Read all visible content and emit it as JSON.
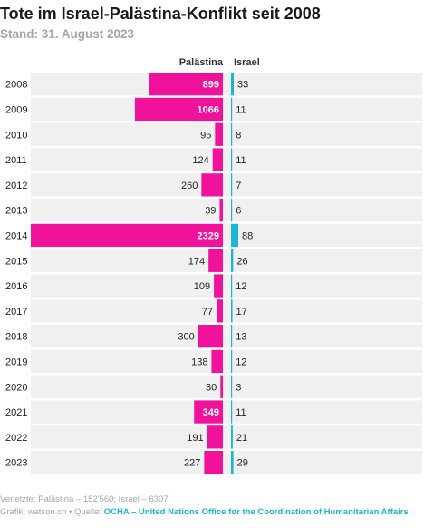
{
  "header": {
    "title": "Tote im Israel-Palästina-Konflikt seit 2008",
    "subtitle": "Stand: 31. August 2023"
  },
  "footer": {
    "injured": "Verletzte: Palästina – 152'560; Israel – 6307",
    "credit_prefix": "Grafik: watson.ch • Quelle: ",
    "source_link": "OCHA – United Nations Office for the Coordination of Humanitarian Affairs"
  },
  "colors": {
    "palestine": "#f0129a",
    "israel": "#1ab7d6",
    "row_background": "#f0f0f0"
  },
  "chart_data": {
    "type": "bar",
    "orientation": "horizontal-diverging",
    "categories": [
      "2008",
      "2009",
      "2010",
      "2011",
      "2012",
      "2013",
      "2014",
      "2015",
      "2016",
      "2017",
      "2018",
      "2019",
      "2020",
      "2021",
      "2022",
      "2023"
    ],
    "series": [
      {
        "name": "Palästina",
        "values": [
          899,
          1066,
          95,
          124,
          260,
          39,
          2329,
          174,
          109,
          77,
          300,
          138,
          30,
          349,
          191,
          227
        ]
      },
      {
        "name": "Israel",
        "values": [
          33,
          11,
          8,
          11,
          7,
          6,
          88,
          26,
          12,
          17,
          13,
          12,
          3,
          11,
          21,
          29
        ]
      }
    ]
  }
}
